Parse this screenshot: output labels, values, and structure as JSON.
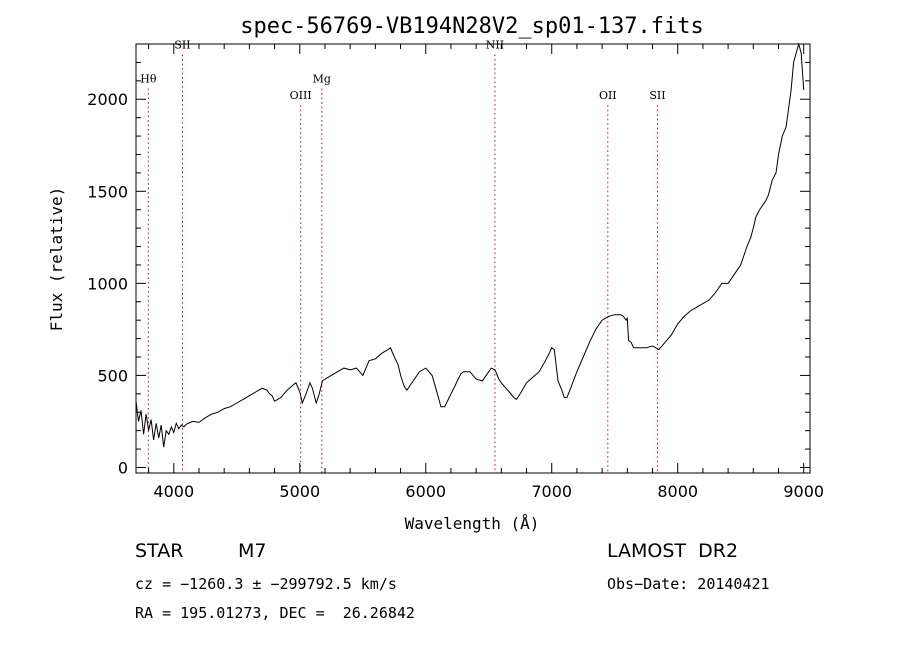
{
  "chart_data": {
    "type": "line",
    "title": "spec-56769-VB194N28V2_sp01-137.fits",
    "xlabel": "Wavelength (Å)",
    "ylabel": "Flux (relative)",
    "xlim": [
      3700,
      9050
    ],
    "ylim": [
      -30,
      2300
    ],
    "xticks": [
      4000,
      5000,
      6000,
      7000,
      8000,
      9000
    ],
    "yticks": [
      0,
      500,
      1000,
      1500,
      2000
    ],
    "grid": false,
    "line_color": "#000000",
    "marker_color": "#cc0000",
    "lines": [
      {
        "name": "Hθ",
        "wavelength": 3798,
        "label_y": 2090
      },
      {
        "name": "SII",
        "wavelength": 4069,
        "label_y": 2275
      },
      {
        "name": "OIII",
        "wavelength": 5007,
        "label_y": 2000
      },
      {
        "name": "Mg",
        "wavelength": 5175,
        "label_y": 2090
      },
      {
        "name": "NII",
        "wavelength": 6549,
        "label_y": 2275
      },
      {
        "name": "OII",
        "wavelength": 7445,
        "label_y": 2000
      },
      {
        "name": "SII",
        "wavelength": 7839,
        "label_y": 2000
      }
    ],
    "series": [
      {
        "x": [
          3700,
          3720,
          3740,
          3760,
          3780,
          3800,
          3820,
          3840,
          3860,
          3880,
          3900,
          3920,
          3940,
          3960,
          3980,
          4000,
          4020,
          4040,
          4060,
          4080,
          4100,
          4150,
          4200,
          4250,
          4300,
          4350,
          4400,
          4450,
          4500,
          4550,
          4600,
          4650,
          4700,
          4740,
          4760,
          4780,
          4800,
          4850,
          4900,
          4950,
          4970,
          5000,
          5020,
          5050,
          5080,
          5100,
          5130,
          5150,
          5180,
          5200,
          5250,
          5300,
          5350,
          5400,
          5450,
          5500,
          5550,
          5600,
          5650,
          5700,
          5720,
          5750,
          5780,
          5800,
          5830,
          5850,
          5900,
          5950,
          6000,
          6050,
          6080,
          6100,
          6120,
          6150,
          6200,
          6230,
          6250,
          6280,
          6300,
          6350,
          6400,
          6450,
          6500,
          6520,
          6550,
          6580,
          6600,
          6650,
          6700,
          6720,
          6750,
          6800,
          6850,
          6900,
          6950,
          6980,
          7000,
          7020,
          7050,
          7080,
          7100,
          7120,
          7150,
          7200,
          7250,
          7300,
          7350,
          7400,
          7450,
          7500,
          7550,
          7570,
          7590,
          7600,
          7610,
          7630,
          7650,
          7700,
          7750,
          7800,
          7850,
          7900,
          7950,
          8000,
          8050,
          8100,
          8150,
          8200,
          8250,
          8300,
          8350,
          8400,
          8450,
          8500,
          8550,
          8580,
          8600,
          8620,
          8650,
          8700,
          8720,
          8750,
          8780,
          8800,
          8830,
          8860,
          8880,
          8900,
          8920,
          8940,
          8960,
          8980,
          9000
        ],
        "y": [
          360,
          250,
          310,
          180,
          290,
          200,
          260,
          150,
          240,
          160,
          230,
          110,
          200,
          180,
          220,
          190,
          240,
          210,
          230,
          220,
          235,
          250,
          245,
          270,
          290,
          300,
          320,
          330,
          350,
          370,
          390,
          410,
          430,
          420,
          400,
          390,
          360,
          380,
          420,
          450,
          460,
          410,
          350,
          400,
          460,
          430,
          350,
          390,
          470,
          480,
          500,
          520,
          540,
          530,
          540,
          500,
          580,
          590,
          620,
          640,
          650,
          600,
          560,
          500,
          440,
          420,
          470,
          520,
          540,
          500,
          430,
          380,
          330,
          330,
          400,
          440,
          470,
          510,
          520,
          520,
          480,
          470,
          520,
          540,
          530,
          480,
          460,
          420,
          380,
          370,
          400,
          460,
          490,
          520,
          580,
          620,
          650,
          640,
          470,
          420,
          380,
          380,
          430,
          520,
          600,
          680,
          750,
          800,
          820,
          830,
          830,
          820,
          800,
          810,
          690,
          680,
          650,
          650,
          650,
          660,
          640,
          680,
          720,
          780,
          820,
          850,
          870,
          890,
          910,
          950,
          1000,
          1000,
          1050,
          1100,
          1200,
          1250,
          1300,
          1360,
          1400,
          1450,
          1480,
          1560,
          1600,
          1700,
          1800,
          1850,
          1950,
          2050,
          2200,
          2250,
          2300,
          2250,
          2050
        ]
      }
    ]
  },
  "info": {
    "obj_class": "STAR",
    "subclass": "M7",
    "survey": "LAMOST  DR2",
    "cz": "cz = −1260.3 ± −299792.5 km/s",
    "obs_date": "Obs−Date: 20140421",
    "radec": "RA = 195.01273, DEC =  26.26842"
  }
}
